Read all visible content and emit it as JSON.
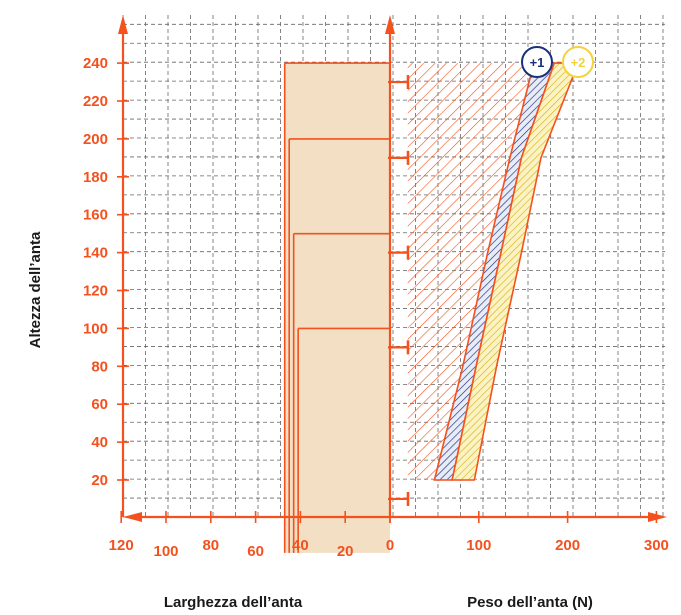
{
  "chart_data": {
    "type": "area",
    "y_axis": {
      "title": "Altezza dell’anta",
      "ticks": [
        "20",
        "40",
        "60",
        "80",
        "100",
        "120",
        "140",
        "160",
        "180",
        "200",
        "220",
        "240"
      ],
      "range": [
        0,
        275
      ]
    },
    "x_left_axis": {
      "title": "Larghezza dell’anta",
      "ticks": [
        "0",
        "20",
        "40",
        "60",
        "80",
        "100",
        "120"
      ],
      "range": [
        0,
        135
      ]
    },
    "x_right_axis": {
      "title": "Peso dell’anta (N)",
      "ticks": [
        "0",
        "100",
        "200",
        "300"
      ],
      "range": [
        0,
        300
      ]
    },
    "width_panel": {
      "max_width": [
        47,
        45,
        43,
        41
      ],
      "height_levels": [
        240,
        200,
        150,
        100
      ],
      "hinge_markers_height": [
        230,
        190,
        140,
        90,
        10
      ]
    },
    "series": [
      {
        "name": "+1",
        "color": "#1c2f7c",
        "lower": [
          [
            50,
            20
          ],
          [
            82,
            80
          ],
          [
            110,
            140
          ],
          [
            135,
            190
          ],
          [
            162,
            240
          ]
        ],
        "upper": [
          [
            70,
            20
          ],
          [
            97,
            80
          ],
          [
            125,
            140
          ],
          [
            148,
            190
          ],
          [
            185,
            240
          ]
        ]
      },
      {
        "name": "+2",
        "color": "#f4d23c",
        "lower": [
          [
            70,
            20
          ],
          [
            97,
            80
          ],
          [
            125,
            140
          ],
          [
            148,
            190
          ],
          [
            185,
            240
          ]
        ],
        "upper": [
          [
            95,
            20
          ],
          [
            120,
            80
          ],
          [
            148,
            140
          ],
          [
            170,
            190
          ],
          [
            212,
            240
          ]
        ]
      }
    ],
    "base_zone": {
      "x_range": [
        20,
        160
      ],
      "y_range": [
        20,
        240
      ]
    },
    "grid": true,
    "colors": {
      "axis": "#f4511e",
      "panel": "#f2dfc4",
      "grid": "#666666"
    }
  }
}
